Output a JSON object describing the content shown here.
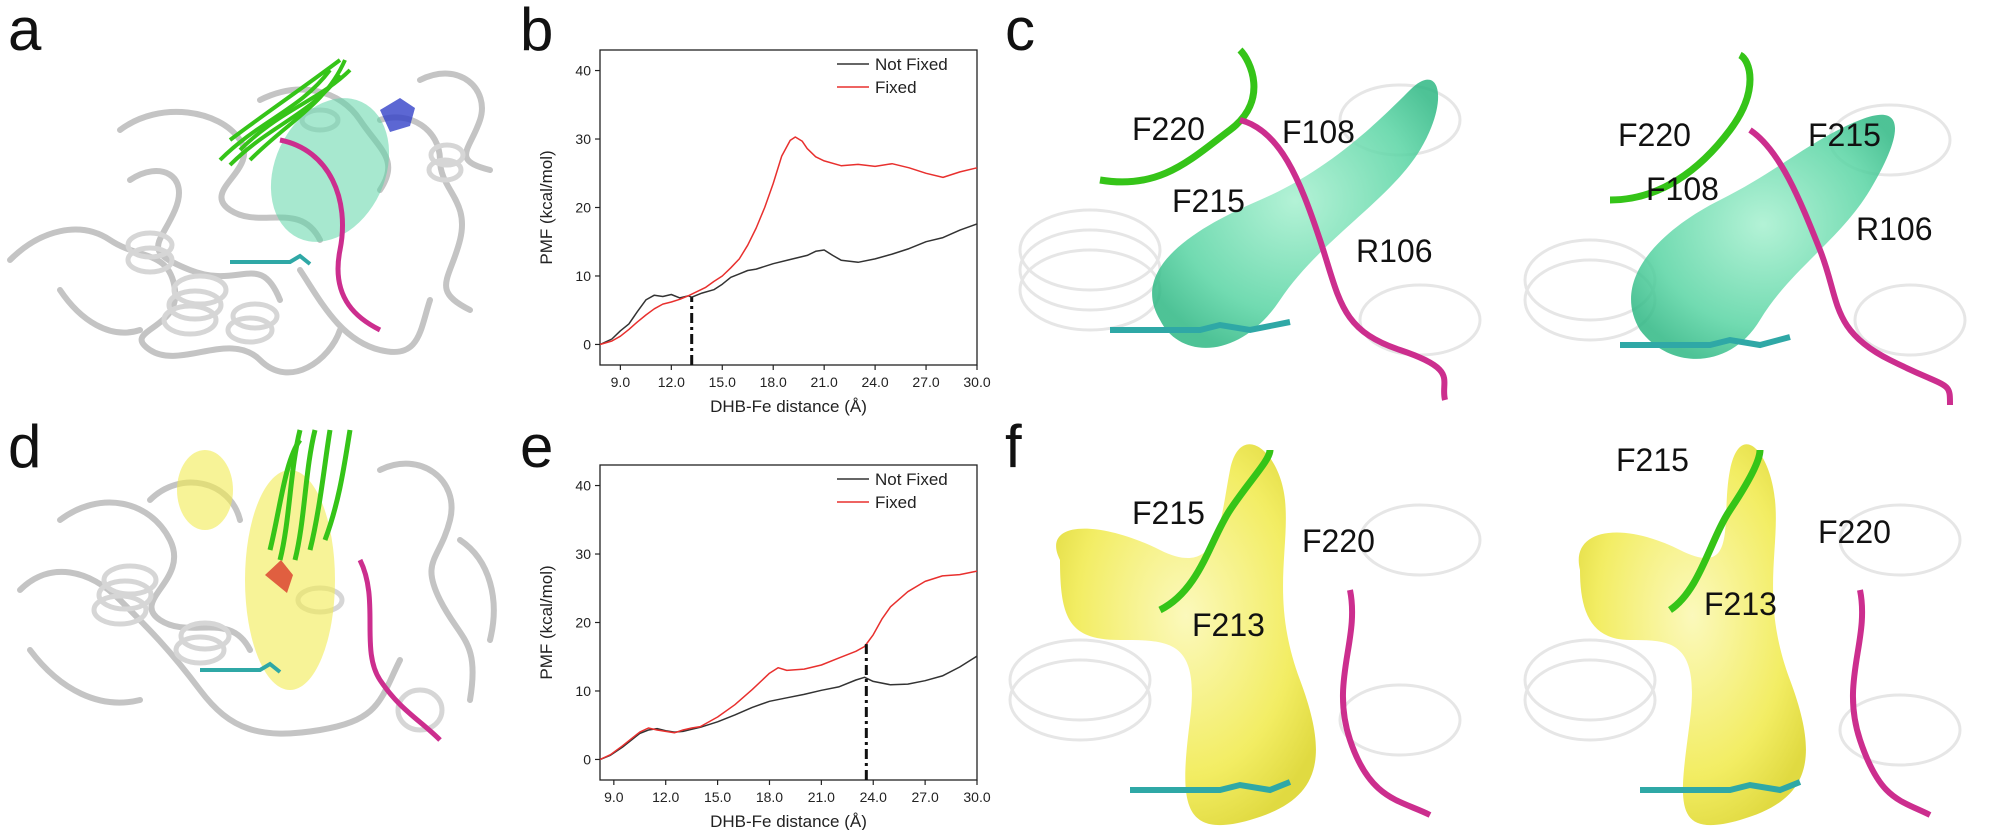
{
  "panel_letters": [
    "a",
    "b",
    "c",
    "d",
    "e",
    "f"
  ],
  "panel_c_labels_left": [
    "F220",
    "F108",
    "F215",
    "R106"
  ],
  "panel_c_labels_right": [
    "F220",
    "F215",
    "F108",
    "R106"
  ],
  "panel_f_labels_left": [
    "F215",
    "F220",
    "F213"
  ],
  "panel_f_labels_right": [
    "F215",
    "F220",
    "F213"
  ],
  "colors": {
    "not_fixed": "#333333",
    "fixed": "#e8302e",
    "tunnel_top": "#5fd6a7",
    "tunnel_bottom": "#f3ee57",
    "loop": "#cc2e8e",
    "helix": "#35c418",
    "protein": "#c8c8c8"
  },
  "chart_data": [
    {
      "type": "line",
      "panel": "b",
      "xlabel": "DHB-Fe distance (Å)",
      "ylabel": "PMF (kcal/mol)",
      "xlim": [
        7.8,
        30.0
      ],
      "ylim": [
        -3,
        43
      ],
      "xticks": [
        "9.0",
        "12.0",
        "15.0",
        "18.0",
        "21.0",
        "24.0",
        "27.0",
        "30.0"
      ],
      "yticks": [
        "0",
        "10",
        "20",
        "30",
        "40"
      ],
      "legend_position": "top-right",
      "marker_x": 13.2,
      "series": [
        {
          "name": "Not Fixed",
          "x": [
            7.8,
            8.5,
            9.0,
            9.5,
            10.0,
            10.5,
            11.0,
            11.5,
            12.0,
            12.5,
            13.0,
            13.2,
            13.8,
            14.5,
            15.0,
            15.5,
            16.0,
            16.5,
            17.0,
            18.0,
            19.0,
            20.0,
            20.5,
            21.0,
            21.5,
            22.0,
            23.0,
            24.0,
            25.0,
            26.0,
            27.0,
            28.0,
            29.0,
            30.0
          ],
          "values": [
            0.0,
            0.8,
            2.0,
            3.0,
            4.8,
            6.5,
            7.2,
            7.0,
            7.3,
            6.8,
            7.1,
            6.9,
            7.5,
            8.0,
            8.8,
            9.8,
            10.3,
            10.8,
            11.0,
            11.8,
            12.4,
            13.0,
            13.6,
            13.8,
            13.0,
            12.3,
            12.0,
            12.5,
            13.2,
            14.0,
            15.0,
            15.6,
            16.7,
            17.6
          ]
        },
        {
          "name": "Fixed",
          "x": [
            7.8,
            8.5,
            9.0,
            9.5,
            10.0,
            10.5,
            11.0,
            11.5,
            12.0,
            12.5,
            13.0,
            13.5,
            14.0,
            14.5,
            15.0,
            15.5,
            16.0,
            16.5,
            17.0,
            17.5,
            18.0,
            18.5,
            19.0,
            19.3,
            19.7,
            20.0,
            20.5,
            21.0,
            22.0,
            23.0,
            24.0,
            25.0,
            26.0,
            27.0,
            28.0,
            29.0,
            30.0
          ],
          "values": [
            0.0,
            0.5,
            1.2,
            2.2,
            3.3,
            4.3,
            5.2,
            5.9,
            6.2,
            6.6,
            7.1,
            7.7,
            8.3,
            9.2,
            10.0,
            11.2,
            12.5,
            14.5,
            17.0,
            20.0,
            23.5,
            27.5,
            29.8,
            30.3,
            29.7,
            28.6,
            27.4,
            26.8,
            26.1,
            26.3,
            26.0,
            26.4,
            25.8,
            25.0,
            24.4,
            25.2,
            25.8
          ]
        }
      ]
    },
    {
      "type": "line",
      "panel": "e",
      "xlabel": "DHB-Fe distance (Å)",
      "ylabel": "PMF (kcal/mol)",
      "xlim": [
        8.2,
        30.0
      ],
      "ylim": [
        -3,
        43
      ],
      "xticks": [
        "9.0",
        "12.0",
        "15.0",
        "18.0",
        "21.0",
        "24.0",
        "27.0",
        "30.0"
      ],
      "yticks": [
        "0",
        "10",
        "20",
        "30",
        "40"
      ],
      "legend_position": "top-right",
      "marker_x": 23.6,
      "series": [
        {
          "name": "Not Fixed",
          "x": [
            8.2,
            8.8,
            9.5,
            10.0,
            10.5,
            11.0,
            11.5,
            12.0,
            12.5,
            13.0,
            13.5,
            14.0,
            15.0,
            16.0,
            17.0,
            18.0,
            19.0,
            20.0,
            21.0,
            22.0,
            23.0,
            23.5,
            24.0,
            25.0,
            26.0,
            27.0,
            28.0,
            29.0,
            30.0
          ],
          "values": [
            0.0,
            0.6,
            1.8,
            2.8,
            3.8,
            4.3,
            4.5,
            4.2,
            4.0,
            4.1,
            4.4,
            4.7,
            5.5,
            6.5,
            7.6,
            8.5,
            9.0,
            9.5,
            10.1,
            10.6,
            11.6,
            12.0,
            11.4,
            10.9,
            11.0,
            11.5,
            12.2,
            13.5,
            15.1
          ]
        },
        {
          "name": "Fixed",
          "x": [
            8.2,
            8.8,
            9.5,
            10.0,
            10.5,
            11.0,
            11.5,
            12.0,
            12.5,
            13.0,
            13.5,
            14.0,
            15.0,
            16.0,
            17.0,
            18.0,
            18.5,
            19.0,
            20.0,
            21.0,
            22.0,
            23.0,
            23.5,
            24.0,
            24.5,
            25.0,
            26.0,
            27.0,
            28.0,
            29.0,
            30.0
          ],
          "values": [
            0.0,
            0.7,
            2.0,
            3.0,
            4.0,
            4.6,
            4.3,
            4.1,
            3.9,
            4.3,
            4.6,
            4.8,
            6.2,
            8.0,
            10.2,
            12.6,
            13.4,
            13.0,
            13.2,
            13.8,
            14.8,
            15.8,
            16.5,
            18.2,
            20.5,
            22.3,
            24.5,
            26.0,
            26.8,
            27.0,
            27.5
          ]
        }
      ]
    }
  ]
}
